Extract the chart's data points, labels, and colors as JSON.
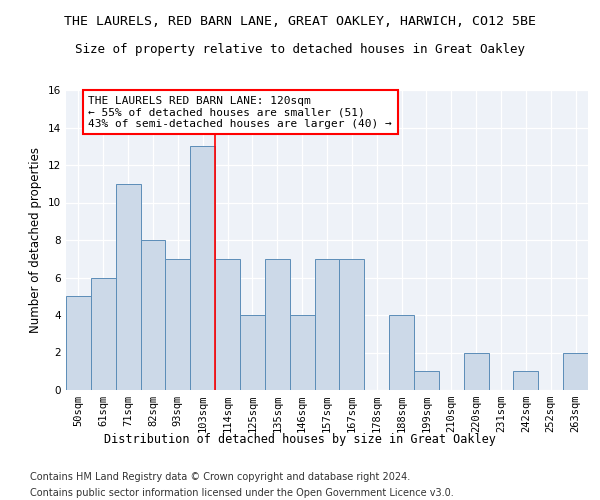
{
  "title": "THE LAURELS, RED BARN LANE, GREAT OAKLEY, HARWICH, CO12 5BE",
  "subtitle": "Size of property relative to detached houses in Great Oakley",
  "xlabel": "Distribution of detached houses by size in Great Oakley",
  "ylabel": "Number of detached properties",
  "categories": [
    "50sqm",
    "61sqm",
    "71sqm",
    "82sqm",
    "93sqm",
    "103sqm",
    "114sqm",
    "125sqm",
    "135sqm",
    "146sqm",
    "157sqm",
    "167sqm",
    "178sqm",
    "188sqm",
    "199sqm",
    "210sqm",
    "220sqm",
    "231sqm",
    "242sqm",
    "252sqm",
    "263sqm"
  ],
  "values": [
    5,
    6,
    11,
    8,
    7,
    13,
    7,
    4,
    7,
    4,
    7,
    7,
    0,
    4,
    1,
    0,
    2,
    0,
    1,
    0,
    2
  ],
  "bar_color": "#ccd9e8",
  "bar_edge_color": "#5b8db8",
  "vline_color": "red",
  "vline_x_index": 6,
  "annotation_line1": "THE LAURELS RED BARN LANE: 120sqm",
  "annotation_line2": "← 55% of detached houses are smaller (51)",
  "annotation_line3": "43% of semi-detached houses are larger (40) →",
  "annotation_box_color": "white",
  "annotation_box_edge_color": "red",
  "ylim": [
    0,
    16
  ],
  "yticks": [
    0,
    2,
    4,
    6,
    8,
    10,
    12,
    14,
    16
  ],
  "footnote1": "Contains HM Land Registry data © Crown copyright and database right 2024.",
  "footnote2": "Contains public sector information licensed under the Open Government Licence v3.0.",
  "background_color": "#eef2f8",
  "grid_color": "#ffffff",
  "title_fontsize": 9.5,
  "subtitle_fontsize": 9,
  "axis_label_fontsize": 8.5,
  "tick_fontsize": 7.5,
  "annotation_fontsize": 8,
  "footnote_fontsize": 7
}
